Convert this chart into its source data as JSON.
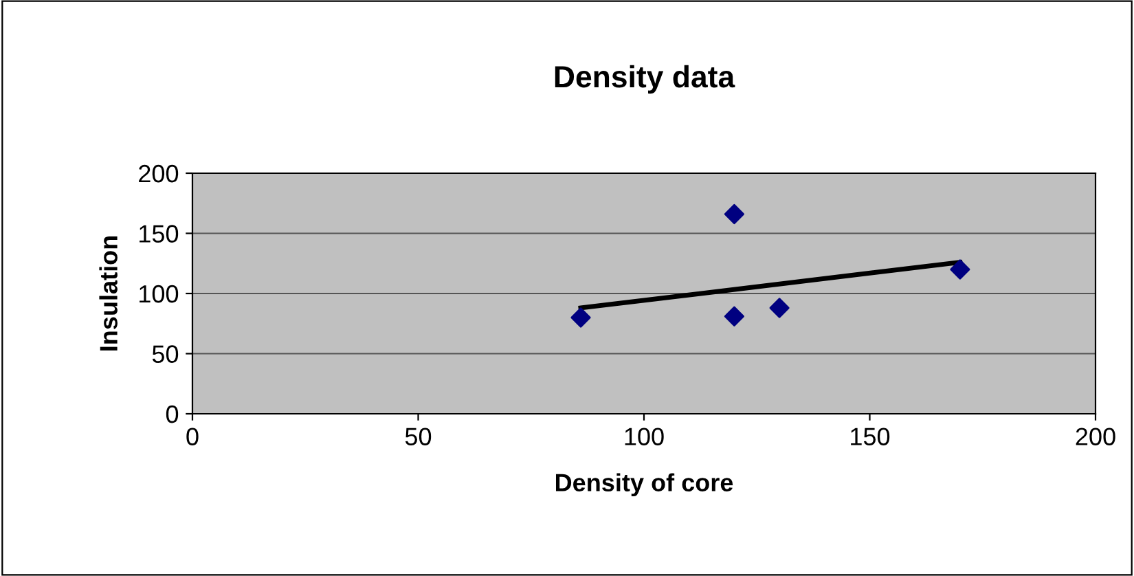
{
  "chart_data": {
    "type": "scatter",
    "title": "Density data",
    "xlabel": "Density of core",
    "ylabel": "Insulation",
    "series": [
      {
        "color": "#000080",
        "marker": "diamond",
        "x": [
          86,
          120,
          120,
          130,
          170
        ],
        "values": [
          80,
          166,
          81,
          88,
          120
        ]
      },
      {
        "type": "line",
        "color": "#000000",
        "marker": "none",
        "line_style": "solid",
        "x": [
          86,
          170
        ],
        "values": [
          88,
          126
        ]
      }
    ],
    "xlim": [
      0,
      200
    ],
    "xticks": [
      0,
      50,
      100,
      150,
      200
    ],
    "ylim": [
      0,
      200
    ],
    "yticks": [
      0,
      50,
      100,
      150,
      200
    ],
    "grid": "y",
    "legend": false
  }
}
